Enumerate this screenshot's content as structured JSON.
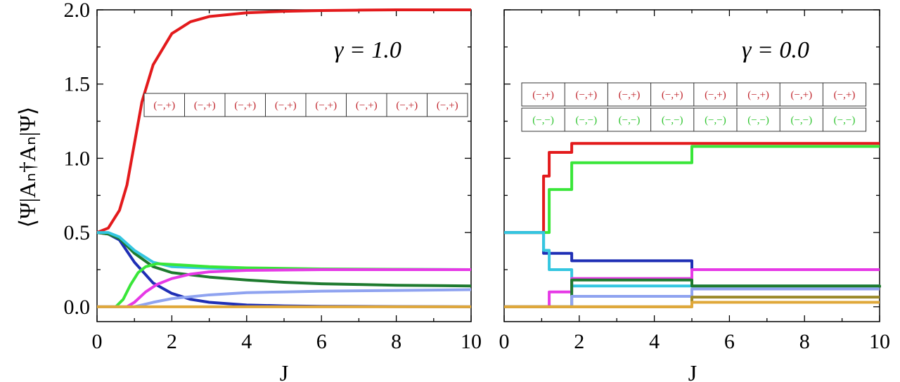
{
  "ylabel": "⟨Ψ|Aₙ†Aₙ|Ψ⟩",
  "chart_data": [
    {
      "type": "line",
      "panel": "left",
      "annotation": "γ = 1.0",
      "xlabel": "J",
      "xlim": [
        0,
        10
      ],
      "ylim": [
        -0.1,
        2.0
      ],
      "xticks": [
        "0",
        "2",
        "4",
        "6",
        "8",
        "10"
      ],
      "yticks": [
        "0.0",
        "0.5",
        "1.0",
        "1.5",
        "2.0"
      ],
      "legend_rows": [
        {
          "color": "#c0262d",
          "labels": [
            "(−,+)",
            "(−,+)",
            "(−,+)",
            "(−,+)",
            "(−,+)",
            "(−,+)",
            "(−,+)",
            "(−,+)"
          ]
        }
      ],
      "series": [
        {
          "color": "#e31a1c",
          "x": [
            0,
            0.3,
            0.6,
            0.8,
            1.0,
            1.2,
            1.5,
            2.0,
            2.5,
            3.0,
            4.0,
            5.0,
            6.0,
            7.0,
            8.0,
            10.0
          ],
          "y": [
            0.5,
            0.53,
            0.65,
            0.82,
            1.1,
            1.38,
            1.63,
            1.84,
            1.92,
            1.955,
            1.98,
            1.99,
            1.995,
            1.998,
            2.0,
            2.0
          ]
        },
        {
          "color": "#1f2fb5",
          "x": [
            0,
            0.3,
            0.6,
            1.0,
            1.5,
            2.0,
            2.5,
            3.0,
            4.0,
            5.0,
            6.0,
            8.0,
            10.0
          ],
          "y": [
            0.5,
            0.49,
            0.45,
            0.3,
            0.16,
            0.09,
            0.05,
            0.03,
            0.012,
            0.006,
            0.003,
            0.001,
            0.0
          ]
        },
        {
          "color": "#1e7a2e",
          "x": [
            0,
            0.3,
            0.6,
            1.0,
            1.5,
            2.0,
            3.0,
            4.0,
            5.0,
            6.0,
            7.0,
            8.0,
            10.0
          ],
          "y": [
            0.5,
            0.49,
            0.46,
            0.36,
            0.27,
            0.23,
            0.2,
            0.18,
            0.165,
            0.155,
            0.15,
            0.145,
            0.14
          ]
        },
        {
          "color": "#34c6e0",
          "x": [
            0,
            0.3,
            0.6,
            1.0,
            1.5,
            2.0,
            3.0,
            4.0,
            6.0,
            10.0
          ],
          "y": [
            0.5,
            0.5,
            0.47,
            0.38,
            0.3,
            0.27,
            0.26,
            0.255,
            0.252,
            0.25
          ]
        },
        {
          "color": "#39e639",
          "x": [
            0,
            0.5,
            0.7,
            0.9,
            1.1,
            1.3,
            1.6,
            2.0,
            3.0,
            4.0,
            6.0,
            10.0
          ],
          "y": [
            0.0,
            0.0,
            0.05,
            0.15,
            0.23,
            0.27,
            0.29,
            0.285,
            0.27,
            0.262,
            0.255,
            0.25
          ]
        },
        {
          "color": "#e639e6",
          "x": [
            0,
            0.8,
            1.0,
            1.3,
            1.6,
            2.0,
            2.5,
            3.0,
            4.0,
            6.0,
            10.0
          ],
          "y": [
            0.0,
            0.0,
            0.03,
            0.1,
            0.15,
            0.19,
            0.22,
            0.235,
            0.245,
            0.25,
            0.25
          ]
        },
        {
          "color": "#8fa3f0",
          "x": [
            0,
            1.0,
            1.5,
            2.0,
            3.0,
            4.0,
            5.0,
            6.0,
            8.0,
            10.0
          ],
          "y": [
            0.0,
            0.0,
            0.03,
            0.055,
            0.08,
            0.095,
            0.1,
            0.105,
            0.11,
            0.115
          ]
        },
        {
          "color": "#e0a83a",
          "x": [
            0,
            10.0
          ],
          "y": [
            0.0,
            0.0
          ]
        }
      ]
    },
    {
      "type": "line",
      "panel": "right",
      "annotation": "γ = 0.0",
      "xlabel": "J",
      "xlim": [
        0,
        10
      ],
      "ylim": [
        -0.1,
        2.0
      ],
      "xticks": [
        "0",
        "2",
        "4",
        "6",
        "8",
        "10"
      ],
      "legend_rows": [
        {
          "color": "#c0262d",
          "labels": [
            "(−,+)",
            "(−,+)",
            "(−,+)",
            "(−,+)",
            "(−,+)",
            "(−,+)",
            "(−,+)",
            "(−,+)"
          ]
        },
        {
          "color": "#2fc42f",
          "labels": [
            "(−,−)",
            "(−,−)",
            "(−,−)",
            "(−,−)",
            "(−,−)",
            "(−,−)",
            "(−,−)",
            "(−,−)"
          ]
        }
      ],
      "series": [
        {
          "color": "#e31a1c",
          "step": true,
          "x": [
            0,
            1.0,
            1.05,
            1.15,
            1.2,
            1.8,
            5.0,
            10.0
          ],
          "y": [
            0.5,
            0.5,
            0.88,
            0.88,
            1.04,
            1.1,
            1.1,
            1.1
          ]
        },
        {
          "color": "#39e639",
          "step": true,
          "x": [
            0,
            1.0,
            1.05,
            1.2,
            1.8,
            5.0,
            10.0
          ],
          "y": [
            0.5,
            0.5,
            0.5,
            0.79,
            0.97,
            1.08,
            1.08
          ]
        },
        {
          "color": "#1f2fb5",
          "step": true,
          "x": [
            0,
            1.0,
            1.05,
            1.2,
            1.8,
            5.0,
            10.0
          ],
          "y": [
            0.5,
            0.5,
            0.36,
            0.36,
            0.31,
            0.25,
            0.25
          ]
        },
        {
          "color": "#34c6e0",
          "step": true,
          "x": [
            0,
            1.0,
            1.05,
            1.2,
            1.8,
            5.0,
            10.0
          ],
          "y": [
            0.5,
            0.5,
            0.38,
            0.25,
            0.14,
            0.14,
            0.14
          ]
        },
        {
          "color": "#e639e6",
          "step": true,
          "x": [
            0,
            1.0,
            1.2,
            1.8,
            5.0,
            10.0
          ],
          "y": [
            0.0,
            0.0,
            0.1,
            0.19,
            0.25,
            0.25
          ]
        },
        {
          "color": "#1e7a2e",
          "step": true,
          "x": [
            0,
            1.8,
            5.0,
            10.0
          ],
          "y": [
            0.0,
            0.18,
            0.14,
            0.13
          ]
        },
        {
          "color": "#8fa3f0",
          "step": true,
          "x": [
            0,
            1.8,
            5.0,
            10.0
          ],
          "y": [
            0.0,
            0.07,
            0.12,
            0.12
          ]
        },
        {
          "color": "#9c8a2a",
          "step": true,
          "x": [
            0,
            1.8,
            5.0,
            10.0
          ],
          "y": [
            0.0,
            0.0,
            0.065,
            0.065
          ]
        },
        {
          "color": "#e0a83a",
          "step": true,
          "x": [
            0,
            1.8,
            5.0,
            10.0
          ],
          "y": [
            0.0,
            0.0,
            0.03,
            0.03
          ]
        }
      ]
    }
  ]
}
